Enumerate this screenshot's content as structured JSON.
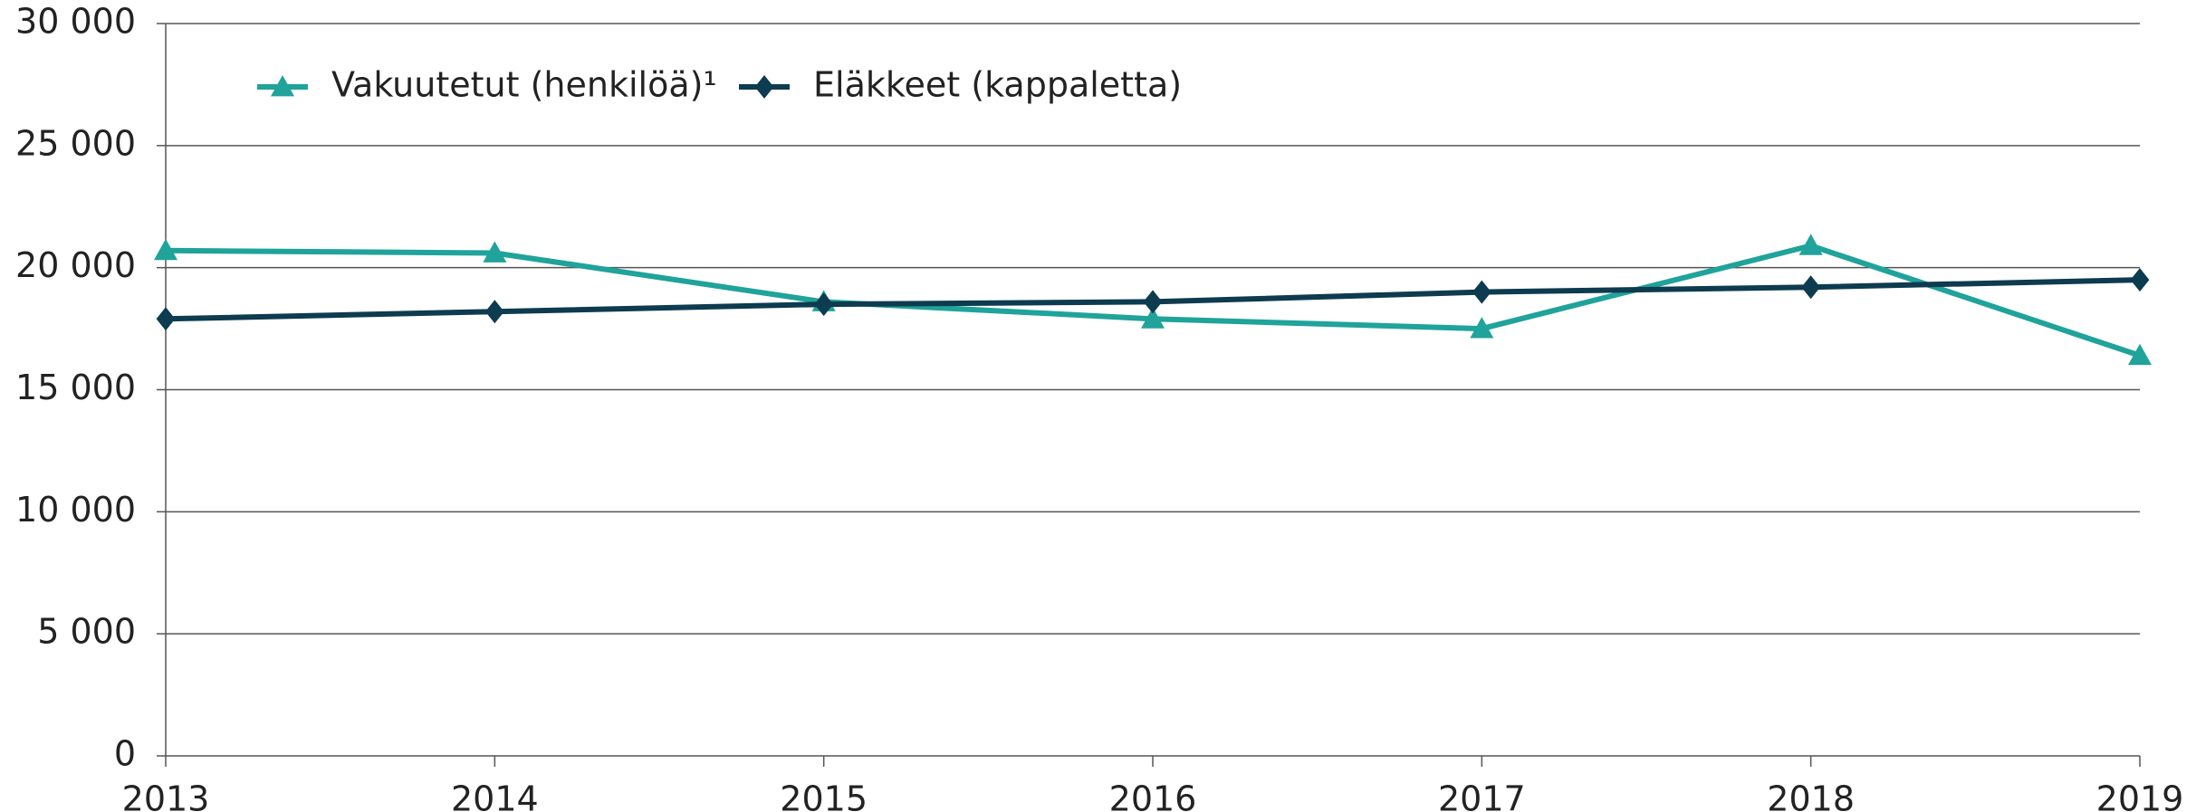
{
  "chart_data": {
    "type": "line",
    "x": [
      2013,
      2014,
      2015,
      2016,
      2017,
      2018,
      2019
    ],
    "xlim": [
      2013,
      2019
    ],
    "xticks": [
      2013,
      2014,
      2015,
      2016,
      2017,
      2018,
      2019
    ],
    "ylim": [
      0,
      30000
    ],
    "yticks": [
      0,
      {
        "value": 5000,
        "label": "5 000"
      },
      {
        "value": 10000,
        "label": "10 000"
      },
      {
        "value": 15000,
        "label": "15 000"
      },
      {
        "value": 20000,
        "label": "20 000"
      },
      {
        "value": 25000,
        "label": "25 000"
      },
      {
        "value": 30000,
        "label": "30 000"
      }
    ],
    "grid": true,
    "legend": "top-left",
    "series": [
      {
        "name": "Vakuutetut (henkilöä)¹",
        "color": "#1fa39a",
        "marker": "triangle",
        "values": [
          20700,
          20600,
          18600,
          17900,
          17500,
          20900,
          16400
        ]
      },
      {
        "name": "Eläkkeet (kappaletta)",
        "color": "#0d3b4f",
        "marker": "diamond",
        "values": [
          17900,
          18200,
          18500,
          18600,
          19000,
          19200,
          19500
        ]
      }
    ]
  }
}
